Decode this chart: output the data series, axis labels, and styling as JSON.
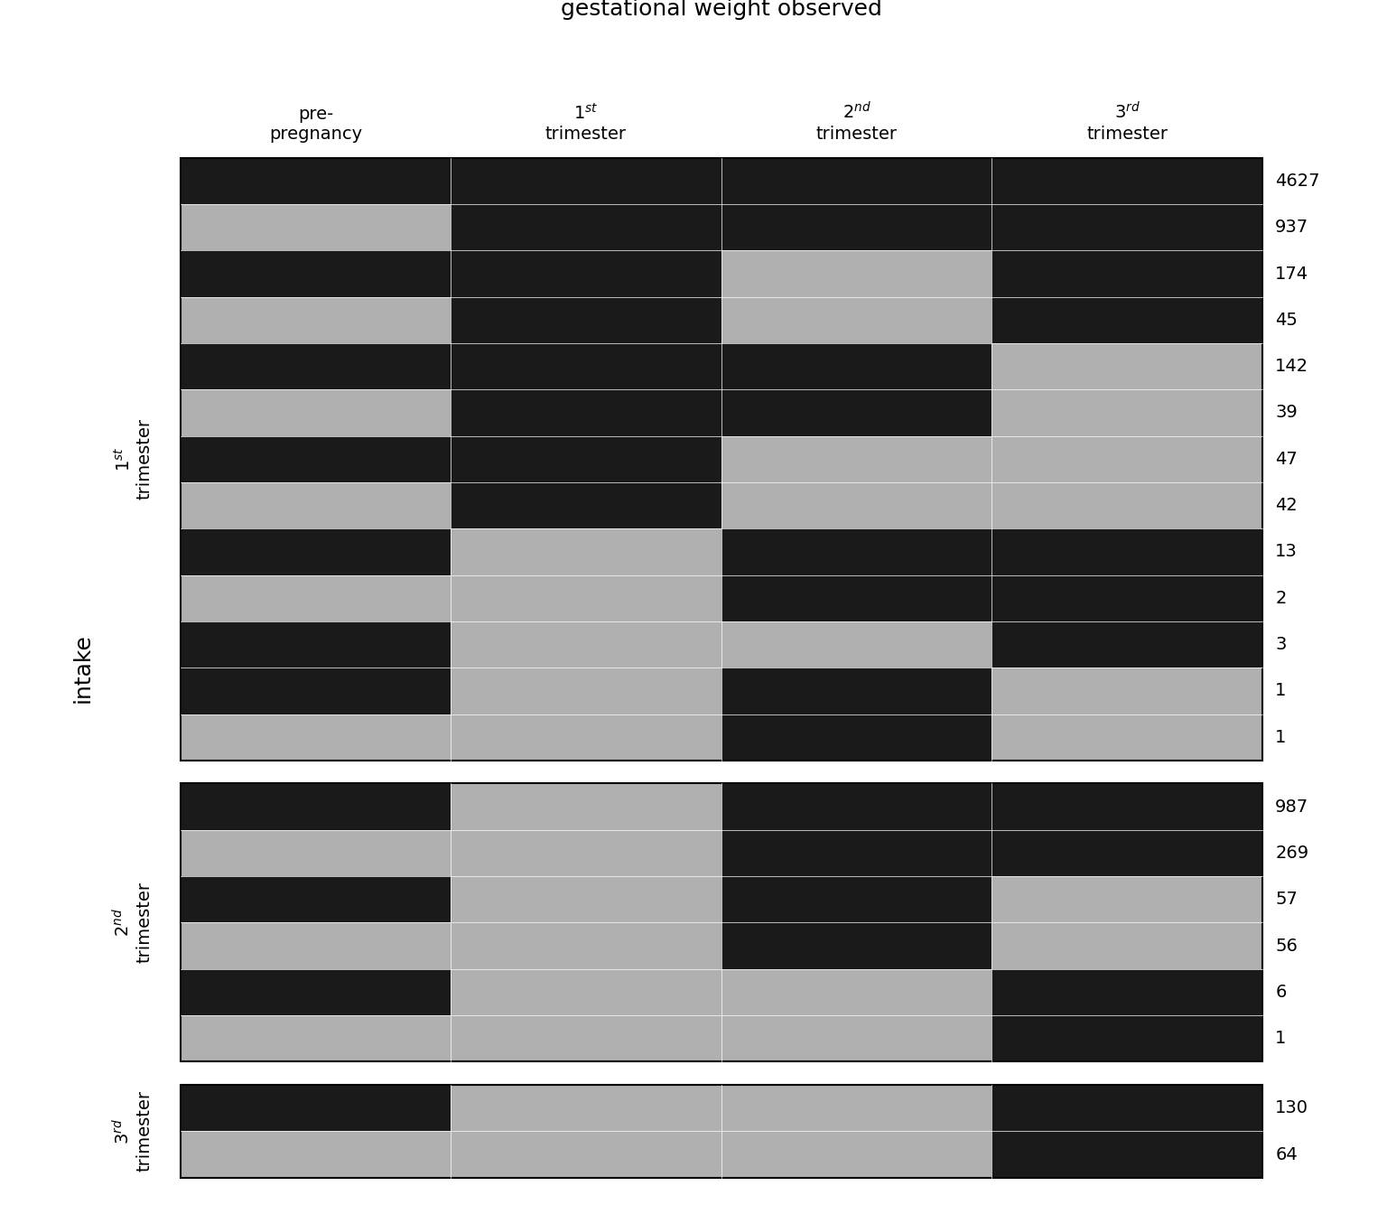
{
  "title": "gestational weight observed",
  "col_labels": [
    "pre-\npregnancy",
    "1$^{st}$\ntrimester",
    "2$^{nd}$\ntrimester",
    "3$^{rd}$\ntrimester"
  ],
  "observed_color": "#1a1a1a",
  "missing_color": "#b0b0b0",
  "ylabel": "intake",
  "groups": [
    {
      "label": "1$^{st}$\ntrimester",
      "rows": [
        {
          "pattern": [
            1,
            1,
            1,
            1
          ],
          "freq": "4627"
        },
        {
          "pattern": [
            0,
            1,
            1,
            1
          ],
          "freq": "937"
        },
        {
          "pattern": [
            1,
            1,
            0,
            1
          ],
          "freq": "174"
        },
        {
          "pattern": [
            0,
            1,
            0,
            1
          ],
          "freq": "45"
        },
        {
          "pattern": [
            1,
            1,
            1,
            0
          ],
          "freq": "142"
        },
        {
          "pattern": [
            0,
            1,
            1,
            0
          ],
          "freq": "39"
        },
        {
          "pattern": [
            1,
            1,
            0,
            0
          ],
          "freq": "47"
        },
        {
          "pattern": [
            0,
            1,
            0,
            0
          ],
          "freq": "42"
        },
        {
          "pattern": [
            1,
            0,
            1,
            1
          ],
          "freq": "13"
        },
        {
          "pattern": [
            0,
            0,
            1,
            1
          ],
          "freq": "2"
        },
        {
          "pattern": [
            1,
            0,
            0,
            1
          ],
          "freq": "3"
        },
        {
          "pattern": [
            1,
            0,
            1,
            0
          ],
          "freq": "1"
        },
        {
          "pattern": [
            0,
            0,
            1,
            0
          ],
          "freq": "1"
        }
      ]
    },
    {
      "label": "2$^{nd}$\ntrimester",
      "rows": [
        {
          "pattern": [
            1,
            0,
            1,
            1
          ],
          "freq": "987"
        },
        {
          "pattern": [
            0,
            0,
            1,
            1
          ],
          "freq": "269"
        },
        {
          "pattern": [
            1,
            0,
            1,
            0
          ],
          "freq": "57"
        },
        {
          "pattern": [
            0,
            0,
            1,
            0
          ],
          "freq": "56"
        },
        {
          "pattern": [
            1,
            0,
            0,
            1
          ],
          "freq": "6"
        },
        {
          "pattern": [
            0,
            0,
            0,
            1
          ],
          "freq": "1"
        }
      ]
    },
    {
      "label": "3$^{rd}$\ntrimester",
      "rows": [
        {
          "pattern": [
            1,
            0,
            0,
            1
          ],
          "freq": "130"
        },
        {
          "pattern": [
            0,
            0,
            0,
            1
          ],
          "freq": "64"
        }
      ]
    }
  ]
}
